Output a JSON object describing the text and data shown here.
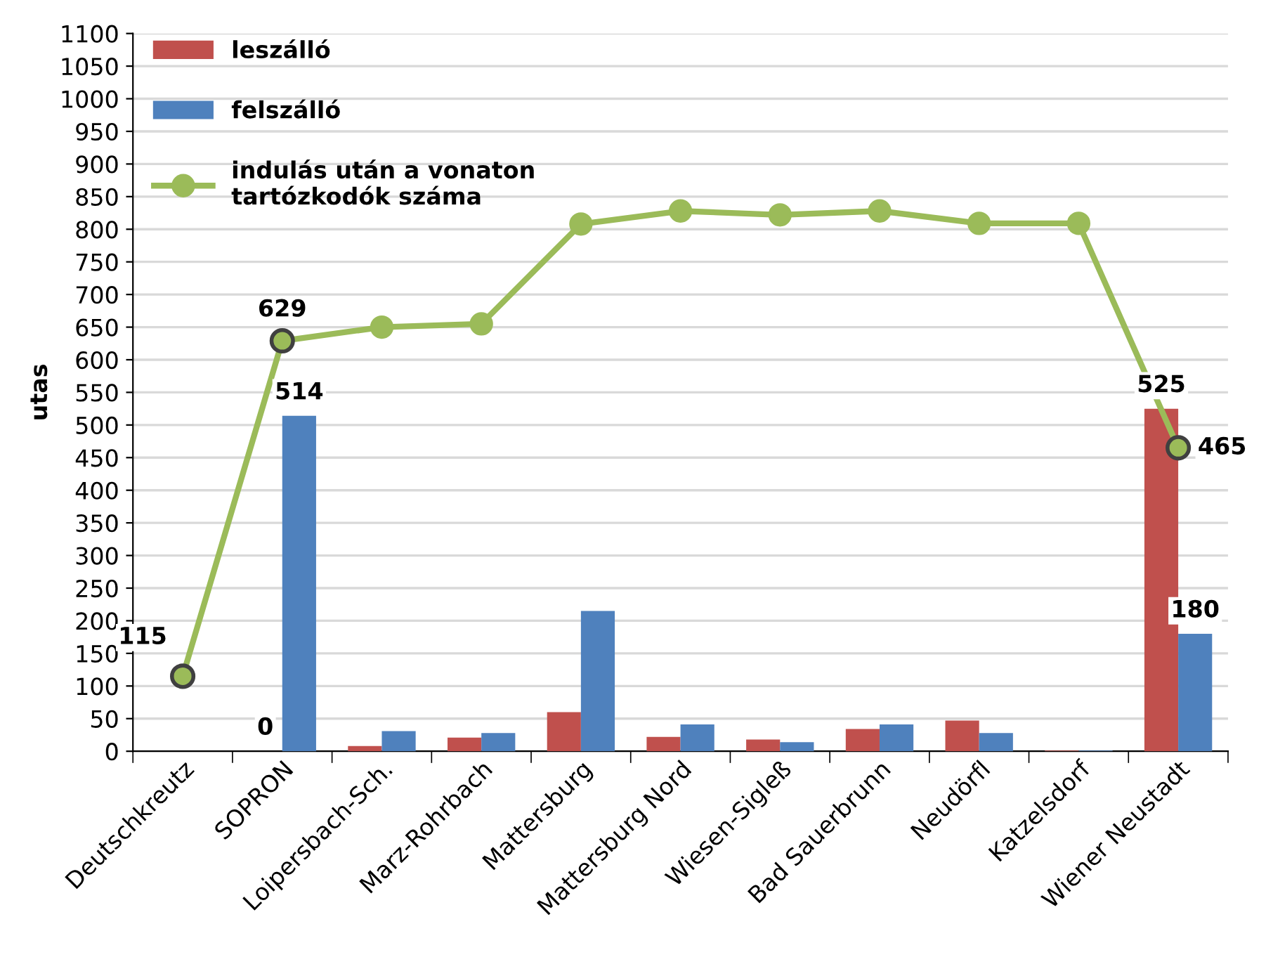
{
  "chart_data": {
    "type": "bar",
    "ylabel": "utas",
    "categories": [
      "Deutschkreutz",
      "SOPRON",
      "Loipersbach-Sch.",
      "Marz-Rohrbach",
      "Mattersburg",
      "Mattersburg Nord",
      "Wiesen-Sigleß",
      "Bad Sauerbrunn",
      "Neudörfl",
      "Katzelsdorf",
      "Wiener Neustadt"
    ],
    "series": [
      {
        "name": "leszálló",
        "color": "#c0504d",
        "values": [
          0,
          0,
          8,
          21,
          60,
          22,
          18,
          34,
          47,
          1,
          525
        ],
        "value_labels": [
          null,
          "0",
          null,
          null,
          null,
          null,
          null,
          null,
          null,
          null,
          "525"
        ]
      },
      {
        "name": "felszálló",
        "color": "#4f81bd",
        "values": [
          0,
          514,
          31,
          28,
          215,
          41,
          14,
          41,
          28,
          1,
          180
        ],
        "value_labels": [
          null,
          "514",
          null,
          null,
          null,
          null,
          null,
          null,
          null,
          null,
          "180"
        ]
      },
      {
        "name": "indulás után a vonaton\ntartózkodók száma",
        "type": "line",
        "color": "#9bbb59",
        "marker": "circle",
        "values": [
          115,
          629,
          650,
          655,
          808,
          828,
          822,
          828,
          809,
          809,
          465
        ],
        "value_labels": [
          "115",
          "629",
          null,
          null,
          null,
          null,
          null,
          null,
          null,
          null,
          "465"
        ]
      }
    ],
    "ylim": [
      0,
      1100
    ],
    "yticks": [
      0,
      50,
      100,
      150,
      200,
      250,
      300,
      350,
      400,
      450,
      500,
      550,
      600,
      650,
      700,
      750,
      800,
      850,
      900,
      950,
      1000,
      1050,
      1100
    ],
    "grid": "y",
    "legend": "top left"
  }
}
